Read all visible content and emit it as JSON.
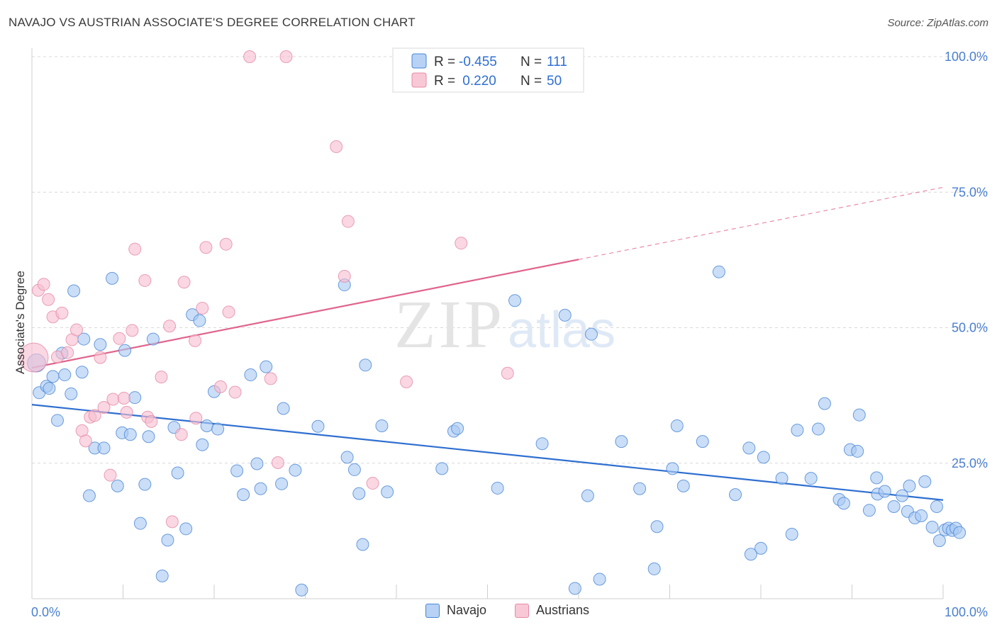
{
  "title": "NAVAJO VS AUSTRIAN ASSOCIATE'S DEGREE CORRELATION CHART",
  "source": "Source: ZipAtlas.com",
  "watermark": {
    "zip": "ZIP",
    "atlas": "atlas"
  },
  "colors": {
    "navajo_fill": "#a9c9f2",
    "navajo_stroke": "#4a86d6",
    "navajo_line": "#2f6fd0",
    "austrians_fill": "#f7bfd0",
    "austrians_stroke": "#e58aa6",
    "austrians_line": "#e0648c",
    "tick_text": "#4a7fd0",
    "grid": "#d8d8d8"
  },
  "legend": {
    "rows": [
      {
        "r_label": "R =",
        "r_value": "-0.455",
        "n_label": "N =",
        "n_value": "111"
      },
      {
        "r_label": "R =",
        "r_value": " 0.220",
        "n_label": "N =",
        "n_value": "50"
      }
    ]
  },
  "bottom_legend": {
    "navajo": "Navajo",
    "austrians": "Austrians"
  },
  "chart_data": {
    "type": "scatter",
    "ylabel": "Associate's Degree",
    "xlim": [
      0,
      100
    ],
    "ylim": [
      0,
      100
    ],
    "x_tick_labels": [
      "0.0%",
      "100.0%"
    ],
    "y_tick_labels": [
      "25.0%",
      "50.0%",
      "75.0%",
      "100.0%"
    ],
    "y_ticks": [
      25,
      50,
      75,
      100
    ],
    "grid": true,
    "legend_placement": "top-center",
    "series": [
      {
        "name": "Navajo",
        "trend": {
          "x0": 0,
          "y0": 35.8,
          "x1": 100,
          "y1": 18.2,
          "dashed_from": null
        },
        "points": [
          [
            0.5,
            43.5,
            1.5
          ],
          [
            0.8,
            38.0,
            1
          ],
          [
            1.6,
            39.2,
            1
          ],
          [
            1.9,
            38.8,
            1
          ],
          [
            2.3,
            41.0,
            1
          ],
          [
            2.8,
            32.9,
            1
          ],
          [
            3.3,
            45.3,
            1
          ],
          [
            3.6,
            41.3,
            1
          ],
          [
            4.3,
            37.8,
            1
          ],
          [
            4.6,
            56.8,
            1
          ],
          [
            5.5,
            41.8,
            1
          ],
          [
            5.7,
            47.9,
            1
          ],
          [
            6.3,
            19.0,
            1
          ],
          [
            6.9,
            27.8,
            1
          ],
          [
            7.5,
            46.9,
            1
          ],
          [
            7.9,
            27.8,
            1
          ],
          [
            8.8,
            59.1,
            1
          ],
          [
            9.4,
            20.8,
            1
          ],
          [
            9.9,
            30.6,
            1
          ],
          [
            10.2,
            45.8,
            1
          ],
          [
            10.8,
            30.3,
            1
          ],
          [
            11.3,
            37.1,
            1
          ],
          [
            11.9,
            13.9,
            1
          ],
          [
            12.4,
            21.1,
            1
          ],
          [
            12.8,
            29.9,
            1
          ],
          [
            13.3,
            47.9,
            1
          ],
          [
            14.3,
            4.2,
            1
          ],
          [
            14.9,
            10.8,
            1
          ],
          [
            15.6,
            31.6,
            1
          ],
          [
            16.0,
            23.2,
            1
          ],
          [
            16.9,
            12.9,
            1
          ],
          [
            17.6,
            52.4,
            1
          ],
          [
            18.4,
            51.3,
            1
          ],
          [
            18.7,
            28.4,
            1
          ],
          [
            19.2,
            31.9,
            1
          ],
          [
            20.0,
            38.2,
            1
          ],
          [
            20.4,
            31.3,
            1
          ],
          [
            22.5,
            23.6,
            1
          ],
          [
            23.2,
            19.2,
            1
          ],
          [
            24.0,
            41.3,
            1
          ],
          [
            24.7,
            24.9,
            1
          ],
          [
            25.1,
            20.3,
            1
          ],
          [
            25.7,
            42.8,
            1
          ],
          [
            27.4,
            21.2,
            1
          ],
          [
            27.6,
            35.1,
            1
          ],
          [
            28.9,
            23.7,
            1
          ],
          [
            29.6,
            1.6,
            1
          ],
          [
            31.4,
            31.8,
            1
          ],
          [
            34.3,
            57.9,
            1
          ],
          [
            34.6,
            26.1,
            1
          ],
          [
            35.4,
            23.8,
            1
          ],
          [
            35.9,
            19.4,
            1
          ],
          [
            36.3,
            10.0,
            1
          ],
          [
            36.6,
            43.1,
            1
          ],
          [
            38.4,
            31.9,
            1
          ],
          [
            39.0,
            19.7,
            1
          ],
          [
            45.0,
            24.0,
            1
          ],
          [
            46.3,
            30.9,
            1
          ],
          [
            46.7,
            31.4,
            1
          ],
          [
            51.1,
            20.4,
            1
          ],
          [
            53.0,
            55.0,
            1
          ],
          [
            56.0,
            28.6,
            1
          ],
          [
            58.5,
            52.3,
            1
          ],
          [
            59.6,
            1.9,
            1
          ],
          [
            61.0,
            19.0,
            1
          ],
          [
            61.4,
            48.8,
            1
          ],
          [
            62.3,
            3.6,
            1
          ],
          [
            64.7,
            29.0,
            1
          ],
          [
            66.7,
            20.3,
            1
          ],
          [
            68.3,
            5.5,
            1
          ],
          [
            68.6,
            13.3,
            1
          ],
          [
            70.3,
            24.0,
            1
          ],
          [
            70.8,
            31.9,
            1
          ],
          [
            71.5,
            20.8,
            1
          ],
          [
            73.6,
            29.0,
            1
          ],
          [
            75.4,
            60.3,
            1
          ],
          [
            77.2,
            19.2,
            1
          ],
          [
            78.7,
            27.8,
            1
          ],
          [
            80.0,
            9.3,
            1
          ],
          [
            80.3,
            26.1,
            1
          ],
          [
            82.3,
            22.2,
            1
          ],
          [
            83.4,
            11.9,
            1
          ],
          [
            84.0,
            31.1,
            1
          ],
          [
            85.5,
            22.2,
            1
          ],
          [
            86.3,
            31.3,
            1
          ],
          [
            87.0,
            36.0,
            1
          ],
          [
            88.6,
            18.3,
            1
          ],
          [
            89.1,
            17.6,
            1
          ],
          [
            89.8,
            27.5,
            1
          ],
          [
            90.6,
            27.2,
            1
          ],
          [
            90.8,
            33.9,
            1
          ],
          [
            91.9,
            16.3,
            1
          ],
          [
            92.7,
            22.3,
            1
          ],
          [
            92.8,
            19.3,
            1
          ],
          [
            93.6,
            19.8,
            1
          ],
          [
            94.6,
            17.0,
            1
          ],
          [
            95.5,
            19.0,
            1
          ],
          [
            96.1,
            16.1,
            1
          ],
          [
            96.3,
            20.8,
            1
          ],
          [
            96.9,
            14.9,
            1
          ],
          [
            97.6,
            15.3,
            1
          ],
          [
            98.0,
            21.6,
            1
          ],
          [
            98.8,
            13.2,
            1
          ],
          [
            99.3,
            17.0,
            1
          ],
          [
            99.6,
            10.7,
            1
          ],
          [
            100.2,
            12.7,
            1
          ],
          [
            100.6,
            13.0,
            1
          ],
          [
            101.0,
            12.6,
            1
          ],
          [
            101.4,
            13.0,
            1
          ],
          [
            101.8,
            12.2,
            1
          ],
          [
            78.9,
            8.2,
            1
          ]
        ]
      },
      {
        "name": "Austrians",
        "trend": {
          "x0": 0,
          "y0": 42.6,
          "x1": 100,
          "y1": 75.9,
          "dashed_from": 60
        },
        "points": [
          [
            0.2,
            44.5,
            2.4
          ],
          [
            0.7,
            56.9,
            1
          ],
          [
            1.3,
            58.0,
            1
          ],
          [
            1.8,
            55.2,
            1
          ],
          [
            2.3,
            52.0,
            1
          ],
          [
            2.8,
            44.6,
            1
          ],
          [
            3.3,
            52.7,
            1
          ],
          [
            3.9,
            45.4,
            1
          ],
          [
            4.4,
            47.8,
            1
          ],
          [
            4.9,
            49.6,
            1
          ],
          [
            5.5,
            31.0,
            1
          ],
          [
            5.9,
            29.1,
            1
          ],
          [
            6.4,
            33.5,
            1
          ],
          [
            6.9,
            33.8,
            1
          ],
          [
            7.5,
            44.5,
            1
          ],
          [
            7.9,
            35.3,
            1
          ],
          [
            8.6,
            22.8,
            1
          ],
          [
            8.9,
            36.8,
            1
          ],
          [
            9.6,
            48.0,
            1
          ],
          [
            10.1,
            37.0,
            1
          ],
          [
            10.4,
            34.4,
            1
          ],
          [
            11.0,
            49.5,
            1
          ],
          [
            11.3,
            64.5,
            1
          ],
          [
            12.4,
            58.7,
            1
          ],
          [
            12.7,
            33.5,
            1
          ],
          [
            13.1,
            32.7,
            1
          ],
          [
            14.2,
            40.9,
            1
          ],
          [
            15.1,
            50.3,
            1
          ],
          [
            15.4,
            14.2,
            1
          ],
          [
            16.4,
            30.3,
            1
          ],
          [
            16.7,
            58.4,
            1
          ],
          [
            17.9,
            47.6,
            1
          ],
          [
            18.0,
            33.3,
            1
          ],
          [
            18.7,
            53.6,
            1
          ],
          [
            19.1,
            64.8,
            1
          ],
          [
            20.7,
            39.1,
            1
          ],
          [
            21.3,
            65.4,
            1
          ],
          [
            21.6,
            52.9,
            1
          ],
          [
            22.3,
            38.1,
            1
          ],
          [
            23.9,
            100.0,
            1
          ],
          [
            26.2,
            40.6,
            1
          ],
          [
            27.0,
            25.1,
            1
          ],
          [
            27.9,
            100.0,
            1
          ],
          [
            33.4,
            83.4,
            1
          ],
          [
            34.3,
            59.5,
            1
          ],
          [
            34.7,
            69.6,
            1
          ],
          [
            37.4,
            21.3,
            1
          ],
          [
            41.1,
            40.0,
            1
          ],
          [
            47.1,
            65.6,
            1
          ],
          [
            52.2,
            41.6,
            1
          ]
        ]
      }
    ]
  }
}
